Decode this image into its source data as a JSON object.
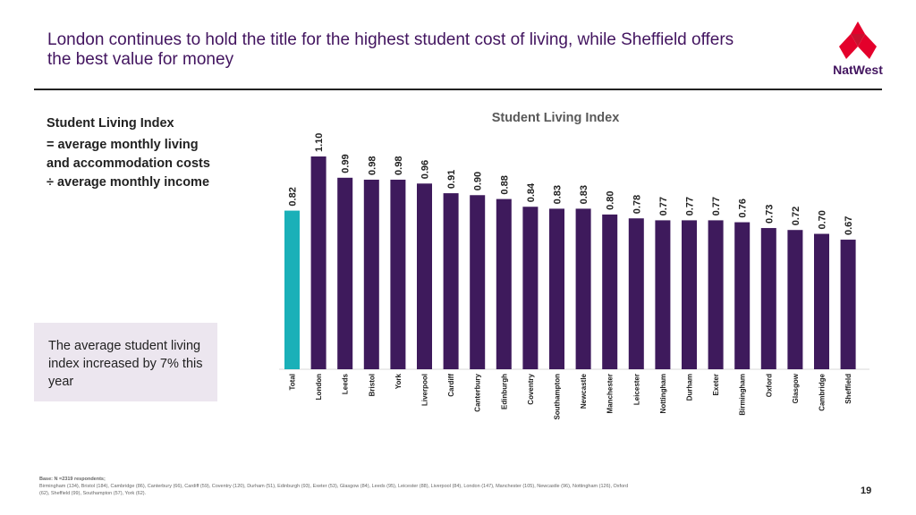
{
  "slide": {
    "headline": "London continues to hold the title for the highest student cost of living, while Sheffield offers the best value for money",
    "brand": "NatWest",
    "definition_title": "Student Living Index",
    "definition_body": "= average monthly living and accommodation costs ÷ average monthly income",
    "callout": "The average student living index increased by 7% this year",
    "footnote_base": "Base: N =2319 respondents;",
    "footnote_detail": "Birmingham (134), Bristol (184), Cambridge (86), Canterbury (66), Cardiff (59), Coventry (120), Durham (51), Edinburgh (93), Exeter (53), Glasgow (84), Leeds (95), Leicester (88), Liverpool (84), London (147), Manchester (105), Newcastle (96), Nottingham (126), Oxford (62), Sheffield (99), Southampton (57), York (62).",
    "page_number": "19"
  },
  "colors": {
    "brand_purple": "#42145f",
    "bar": "#3e1a5c",
    "total_bar": "#1ab0b8",
    "logo_red": "#e4002b"
  },
  "chart_data": {
    "type": "bar",
    "title": "Student Living Index",
    "categories": [
      "Total",
      "London",
      "Leeds",
      "Bristol",
      "York",
      "Liverpool",
      "Cardiff",
      "Canterbury",
      "Edinburgh",
      "Coventry",
      "Southampton",
      "Newcastle",
      "Manchester",
      "Leicester",
      "Nottingham",
      "Durham",
      "Exeter",
      "Birmingham",
      "Oxford",
      "Glasgow",
      "Cambridge",
      "Sheffield"
    ],
    "values": [
      0.82,
      1.1,
      0.99,
      0.98,
      0.98,
      0.96,
      0.91,
      0.9,
      0.88,
      0.84,
      0.83,
      0.83,
      0.8,
      0.78,
      0.77,
      0.77,
      0.77,
      0.76,
      0.73,
      0.72,
      0.7,
      0.67
    ],
    "value_labels": [
      "0.82",
      "1.10",
      "0.99",
      "0.98",
      "0.98",
      "0.96",
      "0.91",
      "0.90",
      "0.88",
      "0.84",
      "0.83",
      "0.83",
      "0.80",
      "0.78",
      "0.77",
      "0.77",
      "0.77",
      "0.76",
      "0.73",
      "0.72",
      "0.70",
      "0.67"
    ],
    "highlight_category": "Total",
    "ylim": [
      0,
      1.1
    ],
    "grid": false,
    "legend": "none"
  }
}
